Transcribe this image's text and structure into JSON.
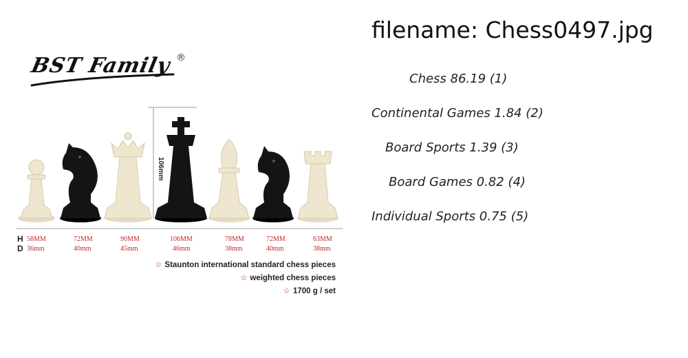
{
  "image": {
    "brand": "BST Family",
    "brand_mark": "®",
    "dimension_label": "106mm",
    "row_keys": [
      "H",
      "D"
    ],
    "heights": [
      "58MM",
      "72MM",
      "90MM",
      "106MM",
      "78MM",
      "72MM",
      "63MM"
    ],
    "diameters": [
      "36mm",
      "40mm",
      "45mm",
      "46mm",
      "38mm",
      "40mm",
      "38mm"
    ],
    "features": [
      "Staunton international standard chess pieces",
      "weighted chess pieces",
      "1700 g / set"
    ],
    "feature_icon": "star-icon",
    "pieces": [
      "pawn",
      "knight",
      "queen",
      "king",
      "bishop",
      "knight",
      "rook"
    ],
    "colors": {
      "light_piece": "#eee6cf",
      "dark_piece": "#141414",
      "accent": "#c0282a"
    }
  },
  "filename_line": "filename: Chess0497.jpg",
  "predictions": [
    {
      "text": "Chess 86.19 (1)"
    },
    {
      "text": "Continental Games   1.84 (2)"
    },
    {
      "text": "Board Sports  1.39 (3)"
    },
    {
      "text": "Board Games  0.82 (4)"
    },
    {
      "text": "Individual Sports  0.75 (5)"
    }
  ]
}
